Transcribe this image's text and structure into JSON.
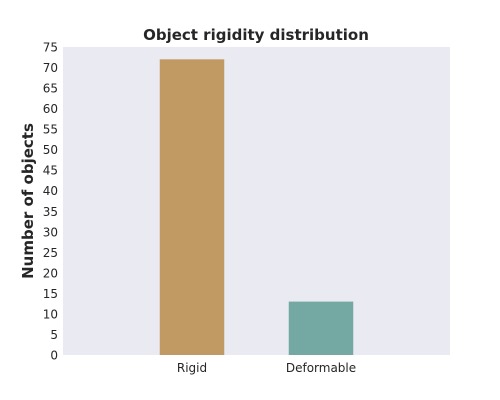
{
  "chart_data": {
    "type": "bar",
    "title": "Object rigidity distribution",
    "xlabel": "",
    "ylabel": "Number of objects",
    "categories": [
      "Rigid",
      "Deformable"
    ],
    "values": [
      72,
      13
    ],
    "bar_colors": [
      "#c19a63",
      "#74a8a2"
    ],
    "ylim": [
      0,
      75
    ],
    "yticks": [
      0,
      5,
      10,
      15,
      20,
      25,
      30,
      35,
      40,
      45,
      50,
      55,
      60,
      65,
      70,
      75
    ],
    "grid": false,
    "legend": "none",
    "background_color": "#eaeaf2"
  }
}
